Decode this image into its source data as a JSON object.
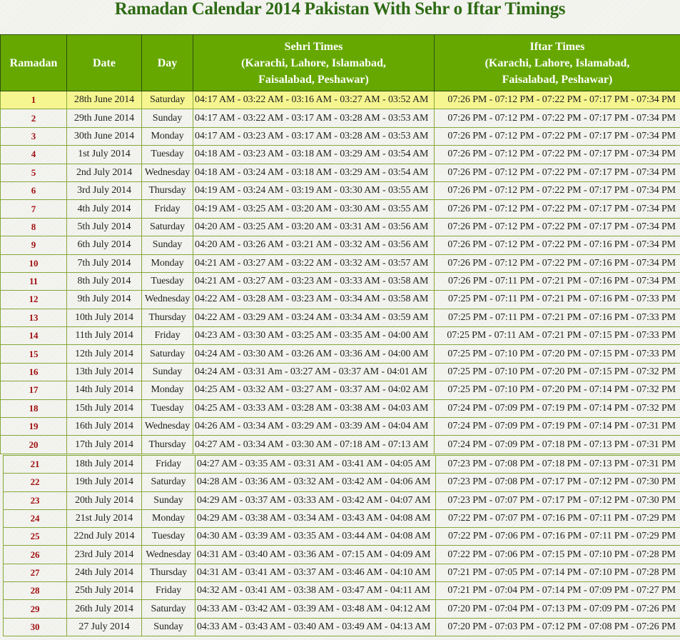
{
  "title": "Ramadan Calendar 2014 Pakistan With Sehr o Iftar Timings",
  "colors": {
    "header_bg": "#66a800",
    "title": "#2e6b14",
    "ramadan_number": "#a01010",
    "highlight_row": "#f6f690"
  },
  "headers": {
    "ramadan": "Ramadan",
    "date": "Date",
    "day": "Day",
    "sehri_title": "Sehri Times",
    "sehri_cities_1": "(Karachi, Lahore, Islamabad,",
    "sehri_cities_2": "Faisalabad, Peshawar)",
    "iftar_title": "Iftar Times",
    "iftar_cities_1": "(Karachi, Lahore, Islamabad,",
    "iftar_cities_2": "Faisalabad, Peshawar)"
  },
  "rows": [
    {
      "ramadan": "1",
      "date": "28th June 2014",
      "day": "Saturday",
      "sehri": "04:17 AM - 03:22 AM - 03:16 AM - 03:27 AM - 03:52 AM",
      "iftar": "07:26 PM - 07:12 PM - 07:22 PM - 07:17 PM - 07:34 PM"
    },
    {
      "ramadan": "2",
      "date": "29th June 2014",
      "day": "Sunday",
      "sehri": "04:17 AM - 03:22 AM - 03:17 AM - 03:28 AM - 03:53 AM",
      "iftar": "07:26 PM - 07:12 PM - 07:22 PM - 07:17 PM - 07:34 PM"
    },
    {
      "ramadan": "3",
      "date": "30th June 2014",
      "day": "Monday",
      "sehri": "04:17 AM - 03:23 AM - 03:17 AM - 03:28 AM - 03:53 AM",
      "iftar": "07:26 PM - 07:12 PM - 07:22 PM - 07:17 PM - 07:34 PM"
    },
    {
      "ramadan": "4",
      "date": "1st July 2014",
      "day": "Tuesday",
      "sehri": "04:18 AM - 03:23 AM - 03:18 AM - 03:29 AM - 03:54 AM",
      "iftar": "07:26 PM - 07:12 PM - 07:22 PM - 07:17 PM - 07:34 PM"
    },
    {
      "ramadan": "5",
      "date": "2nd July 2014",
      "day": "Wednesday",
      "sehri": "04:18 AM - 03:24 AM - 03:18 AM - 03:29 AM - 03:54 AM",
      "iftar": "07:26 PM - 07:12 PM - 07:22 PM - 07:17 PM - 07:34 PM"
    },
    {
      "ramadan": "6",
      "date": "3rd July 2014",
      "day": "Thursday",
      "sehri": "04:19 AM - 03:24 AM - 03:19 AM - 03:30 AM - 03:55 AM",
      "iftar": "07:26 PM - 07:12 PM - 07:22 PM - 07:17 PM - 07:34 PM"
    },
    {
      "ramadan": "7",
      "date": "4th July 2014",
      "day": "Friday",
      "sehri": "04:19 AM - 03:25 AM - 03:20 AM - 03:30 AM - 03:55 AM",
      "iftar": "07:26 PM - 07:12 PM - 07:22 PM - 07:17 PM - 07:34 PM"
    },
    {
      "ramadan": "8",
      "date": "5th July 2014",
      "day": "Saturday",
      "sehri": "04:20 AM - 03:25 AM - 03:20 AM - 03:31 AM - 03:56 AM",
      "iftar": "07:26 PM - 07:12 PM - 07:22 PM - 07:17 PM - 07:34 PM"
    },
    {
      "ramadan": "9",
      "date": "6th July 2014",
      "day": "Sunday",
      "sehri": "04:20 AM - 03:26 AM - 03:21 AM - 03:32 AM - 03:56 AM",
      "iftar": "07:26 PM - 07:12 PM - 07:22 PM - 07:16 PM - 07:34 PM"
    },
    {
      "ramadan": "10",
      "date": "7th July 2014",
      "day": "Monday",
      "sehri": "04:21 AM - 03:27 AM - 03:22 AM - 03:32 AM - 03:57 AM",
      "iftar": "07:26 PM - 07:12 PM - 07:22 PM - 07:16 PM - 07:34 PM"
    },
    {
      "ramadan": "11",
      "date": "8th July 2014",
      "day": "Tuesday",
      "sehri": "04:21 AM - 03:27 AM - 03:23 AM - 03:33 AM - 03:58 AM",
      "iftar": "07:26 PM - 07:11 PM - 07:21 PM - 07:16 PM - 07:34 PM"
    },
    {
      "ramadan": "12",
      "date": "9th July 2014",
      "day": "Wednesday",
      "sehri": "04:22 AM - 03:28 AM - 03:23 AM - 03:34 AM - 03:58 AM",
      "iftar": "07:25 PM - 07:11 PM - 07:21 PM - 07:16 PM - 07:33 PM"
    },
    {
      "ramadan": "13",
      "date": "10th July 2014",
      "day": "Thursday",
      "sehri": "04:22 AM - 03:29 AM - 03:24 AM - 03:34 AM - 03:59 AM",
      "iftar": "07:25 PM - 07:11 PM - 07:21 PM - 07:16 PM - 07:33 PM"
    },
    {
      "ramadan": "14",
      "date": "11th July 2014",
      "day": "Friday",
      "sehri": "04:23 AM - 03:30 AM - 03:25 AM - 03:35 AM - 04:00 AM",
      "iftar": "07:25 PM - 07:11 AM - 07:21 PM - 07:15 PM - 07:33 PM"
    },
    {
      "ramadan": "15",
      "date": "12th July 2014",
      "day": "Saturday",
      "sehri": "04:24 AM - 03:30 AM - 03:26 AM - 03:36 AM - 04:00 AM",
      "iftar": "07:25 PM - 07:10 PM - 07:20 PM - 07:15 PM - 07:33 PM"
    },
    {
      "ramadan": "16",
      "date": "13th July 2014",
      "day": "Sunday",
      "sehri": "04:24 AM - 03:31 Am - 03:27 AM - 03:37 AM - 04:01 AM",
      "iftar": "07:25 PM - 07:10 PM - 07:20 PM - 07:15 PM - 07:32 PM"
    },
    {
      "ramadan": "17",
      "date": "14th July 2014",
      "day": "Monday",
      "sehri": "04:25 AM - 03:32 AM - 03:27 AM - 03:37 AM - 04:02 AM",
      "iftar": "07:25 PM - 07:10 PM - 07:20 PM - 07:14 PM - 07:32 PM"
    },
    {
      "ramadan": "18",
      "date": "15th July 2014",
      "day": "Tuesday",
      "sehri": "04:25 AM - 03:33 AM - 03:28 AM - 03:38 AM - 04:03 AM",
      "iftar": "07:24 PM - 07:09 PM - 07:19 PM - 07:14 PM - 07:32 PM"
    },
    {
      "ramadan": "19",
      "date": "16th July 2014",
      "day": "Wednesday",
      "sehri": "04:26 AM - 03:34 AM - 03:29 AM - 03:39 AM - 04:04 AM",
      "iftar": "07:24 PM - 07:09 PM - 07:19 PM - 07:14 PM - 07:31 PM"
    },
    {
      "ramadan": "20",
      "date": "17th July 2014",
      "day": "Thursday",
      "sehri": "04:27 AM - 03:34 AM - 03:30 AM - 07:18 AM - 07:13 AM",
      "iftar": "07:24 PM - 07:09 PM - 07:18 PM - 07:13 PM - 07:31 PM"
    },
    {
      "ramadan": "21",
      "date": "18th July 2014",
      "day": "Friday",
      "sehri": "04:27 AM - 03:35 AM - 03:31 AM - 03:41 AM - 04:05 AM",
      "iftar": "07:23 PM - 07:08 PM - 07:18 PM - 07:13 PM - 07:31 PM"
    },
    {
      "ramadan": "22",
      "date": "19th July 2014",
      "day": "Saturday",
      "sehri": "04:28 AM - 03:36 AM - 03:32 AM - 03:42 AM - 04:06 AM",
      "iftar": "07:23 PM - 07:08 PM - 07:17 PM - 07:12 PM - 07:30 PM"
    },
    {
      "ramadan": "23",
      "date": "20th July 2014",
      "day": "Sunday",
      "sehri": "04:29 AM - 03:37 AM - 03:33 AM - 03:42 AM - 04:07 AM",
      "iftar": "07:23 PM - 07:07 PM - 07:17 PM - 07:12 PM - 07:30 PM"
    },
    {
      "ramadan": "24",
      "date": "21st July 2014",
      "day": "Monday",
      "sehri": "04:29 AM - 03:38 AM - 03:34 AM - 03:43 AM - 04:08 AM",
      "iftar": "07:22 PM - 07:07 PM - 07:16 PM - 07:11 PM - 07:29 PM"
    },
    {
      "ramadan": "25",
      "date": "22nd July 2014",
      "day": "Tuesday",
      "sehri": "04:30 AM - 03:39 AM - 03:35 AM - 03:44 AM - 04:08 AM",
      "iftar": "07:22 PM - 07:06 PM - 07:16 PM - 07:11 PM - 07:29 PM"
    },
    {
      "ramadan": "26",
      "date": "23rd July 2014",
      "day": "Wednesday",
      "sehri": "04:31 AM - 03:40 AM - 03:36 AM - 07:15 AM - 04:09 AM",
      "iftar": "07:22 PM - 07:06 PM - 07:15 PM - 07:10 PM - 07:28 PM"
    },
    {
      "ramadan": "27",
      "date": "24th July 2014",
      "day": "Thursday",
      "sehri": "04:31 AM - 03:41 AM - 03:37 AM - 03:46 AM - 04:10 AM",
      "iftar": "07:21 PM - 07:05 PM - 07:14 PM - 07:10 PM - 07:28 PM"
    },
    {
      "ramadan": "28",
      "date": "25th July 2014",
      "day": "Friday",
      "sehri": "04:32 AM - 03:41 AM - 03:38 AM - 03:47 AM - 04:11 AM",
      "iftar": "07:21 PM - 07:04 PM - 07:14 PM - 07:09 PM - 07:27 PM"
    },
    {
      "ramadan": "29",
      "date": "26th July 2014",
      "day": "Saturday",
      "sehri": "04:33 AM - 03:42 AM - 03:39 AM - 03:48 AM - 04:12 AM",
      "iftar": "07:20 PM - 07:04 PM - 07:13 PM - 07:09 PM - 07:26 PM"
    },
    {
      "ramadan": "30",
      "date": "27 July 2014",
      "day": "Sunday",
      "sehri": "04:33 AM - 03:43 AM - 03:40 AM - 03:49 AM - 04:13 AM",
      "iftar": "07:20 PM - 07:03 PM - 07:12 PM - 07:08 PM - 07:26 PM"
    }
  ]
}
